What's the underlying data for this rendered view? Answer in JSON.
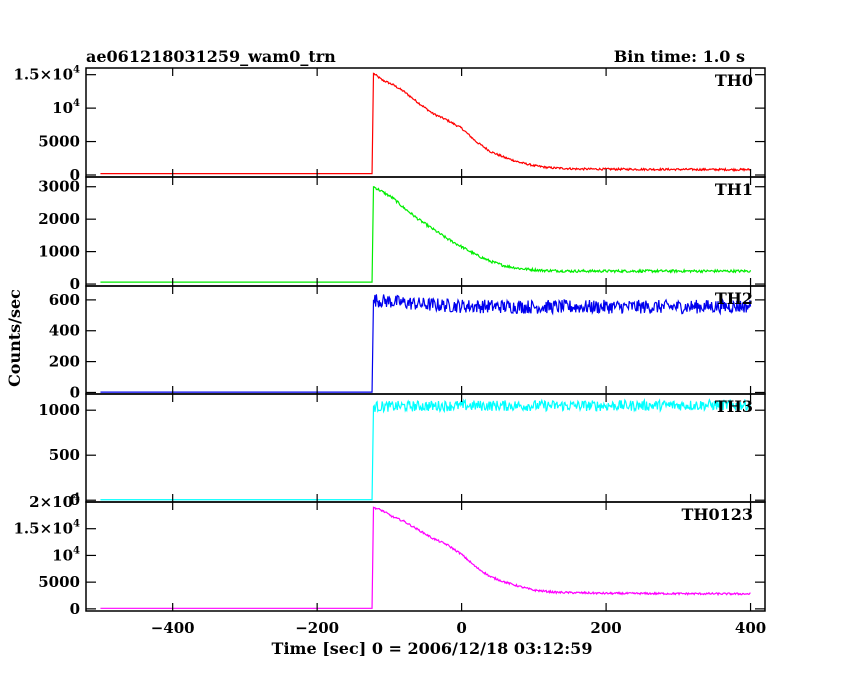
{
  "chart_data": {
    "type": "line",
    "title": "ae061218031259_wam0_trn",
    "subtitle": "Bin time: 1.0 s",
    "xlabel": "Time [sec] 0 = 2006/12/18 03:12:59",
    "ylabel": "Counts/sec",
    "xlim": [
      -520,
      420
    ],
    "x_ticks": [
      -400,
      -200,
      0,
      200,
      400
    ],
    "x_tick_labels": [
      "−400",
      "−200",
      "0",
      "200",
      "400"
    ],
    "grid": false,
    "panels": [
      {
        "name": "TH0",
        "color": "#ff0000",
        "ylim": [
          -300,
          16000
        ],
        "y_ticks": [
          0,
          5000,
          10000,
          15000
        ],
        "y_tick_labels": [
          {
            "base": "0"
          },
          {
            "base": "5000"
          },
          {
            "base": "10",
            "exp": "4"
          },
          {
            "base": "1.5×10",
            "exp": "4"
          }
        ],
        "points": [
          [
            -500,
            200
          ],
          [
            -124,
            200
          ],
          [
            -122,
            15200
          ],
          [
            -110,
            14200
          ],
          [
            -95,
            13500
          ],
          [
            -80,
            12500
          ],
          [
            -60,
            10800
          ],
          [
            -40,
            9200
          ],
          [
            -20,
            8200
          ],
          [
            0,
            7000
          ],
          [
            20,
            5000
          ],
          [
            40,
            3500
          ],
          [
            60,
            2600
          ],
          [
            80,
            1900
          ],
          [
            100,
            1400
          ],
          [
            120,
            1100
          ],
          [
            160,
            900
          ],
          [
            250,
            850
          ],
          [
            400,
            800
          ]
        ],
        "noise": 150
      },
      {
        "name": "TH1",
        "color": "#00ee00",
        "ylim": [
          -60,
          3300
        ],
        "y_ticks": [
          0,
          1000,
          2000,
          3000
        ],
        "y_tick_labels": [
          {
            "base": "0"
          },
          {
            "base": "1000"
          },
          {
            "base": "2000"
          },
          {
            "base": "3000"
          }
        ],
        "points": [
          [
            -500,
            60
          ],
          [
            -124,
            60
          ],
          [
            -122,
            3000
          ],
          [
            -110,
            2850
          ],
          [
            -95,
            2650
          ],
          [
            -80,
            2350
          ],
          [
            -60,
            2000
          ],
          [
            -40,
            1700
          ],
          [
            -20,
            1400
          ],
          [
            0,
            1150
          ],
          [
            20,
            900
          ],
          [
            40,
            700
          ],
          [
            60,
            560
          ],
          [
            80,
            480
          ],
          [
            110,
            420
          ],
          [
            150,
            400
          ],
          [
            400,
            400
          ]
        ],
        "noise": 40
      },
      {
        "name": "TH2",
        "color": "#0000ee",
        "ylim": [
          -10,
          690
        ],
        "y_ticks": [
          0,
          200,
          400,
          600
        ],
        "y_tick_labels": [
          {
            "base": "0"
          },
          {
            "base": "200"
          },
          {
            "base": "400"
          },
          {
            "base": "600"
          }
        ],
        "points": [
          [
            -500,
            2
          ],
          [
            -124,
            2
          ],
          [
            -122,
            600
          ],
          [
            -100,
            590
          ],
          [
            -50,
            570
          ],
          [
            0,
            560
          ],
          [
            100,
            555
          ],
          [
            300,
            555
          ],
          [
            400,
            560
          ]
        ],
        "noise": 45
      },
      {
        "name": "TH3",
        "color": "#00ffff",
        "ylim": [
          -20,
          1180
        ],
        "y_ticks": [
          0,
          500,
          1000
        ],
        "y_tick_labels": [
          {
            "base": "0"
          },
          {
            "base": "500"
          },
          {
            "base": "1000"
          }
        ],
        "points": [
          [
            -500,
            5
          ],
          [
            -124,
            5
          ],
          [
            -122,
            1040
          ],
          [
            0,
            1050
          ],
          [
            200,
            1050
          ],
          [
            400,
            1060
          ]
        ],
        "noise": 60
      },
      {
        "name": "TH0123",
        "color": "#ff00ff",
        "ylim": [
          -400,
          20000
        ],
        "y_ticks": [
          0,
          5000,
          10000,
          15000,
          20000
        ],
        "y_tick_labels": [
          {
            "base": "0"
          },
          {
            "base": "5000"
          },
          {
            "base": "10",
            "exp": "4"
          },
          {
            "base": "1.5×10",
            "exp": "4"
          },
          {
            "base": "2×10",
            "exp": "4"
          }
        ],
        "points": [
          [
            -500,
            100
          ],
          [
            -124,
            100
          ],
          [
            -122,
            19000
          ],
          [
            -110,
            18400
          ],
          [
            -95,
            17200
          ],
          [
            -80,
            16400
          ],
          [
            -60,
            14800
          ],
          [
            -40,
            13200
          ],
          [
            -20,
            12000
          ],
          [
            0,
            10200
          ],
          [
            20,
            7800
          ],
          [
            40,
            6000
          ],
          [
            60,
            5000
          ],
          [
            80,
            4200
          ],
          [
            100,
            3500
          ],
          [
            130,
            3100
          ],
          [
            200,
            2900
          ],
          [
            400,
            2800
          ]
        ],
        "noise": 180
      }
    ]
  }
}
